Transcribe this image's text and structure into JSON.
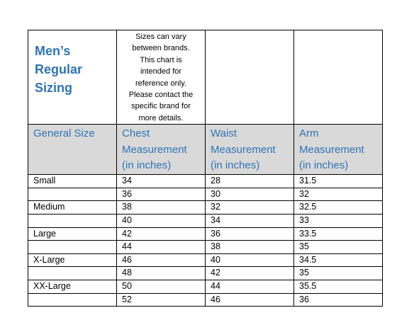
{
  "table": {
    "title": "Men’s\nRegular\nSizing",
    "note": "Sizes can vary\nbetween brands.\nThis chart is\nintended for\nreference only.\nPlease contact the\nspecific brand for\nmore details.",
    "headers": [
      "General Size",
      "Chest\nMeasurement\n(in inches)",
      "Waist\nMeasurement\n(in inches)",
      "Arm\nMeasurement\n(in inches)"
    ],
    "rows": [
      [
        "Small",
        "34",
        "28",
        "31.5"
      ],
      [
        "",
        "36",
        "30",
        "32"
      ],
      [
        "Medium",
        "38",
        "32",
        "32.5"
      ],
      [
        "",
        "40",
        "34",
        "33"
      ],
      [
        "Large",
        "42",
        "36",
        "33.5"
      ],
      [
        "",
        "44",
        "38",
        "35"
      ],
      [
        "X-Large",
        "46",
        "40",
        "34.5"
      ],
      [
        "",
        "48",
        "42",
        "35"
      ],
      [
        "XX-Large",
        "50",
        "44",
        "35.5"
      ],
      [
        "",
        "52",
        "46",
        "36"
      ]
    ]
  },
  "colors": {
    "heading_blue": "#2e74b5",
    "header_fill": "#d9d9d9"
  }
}
